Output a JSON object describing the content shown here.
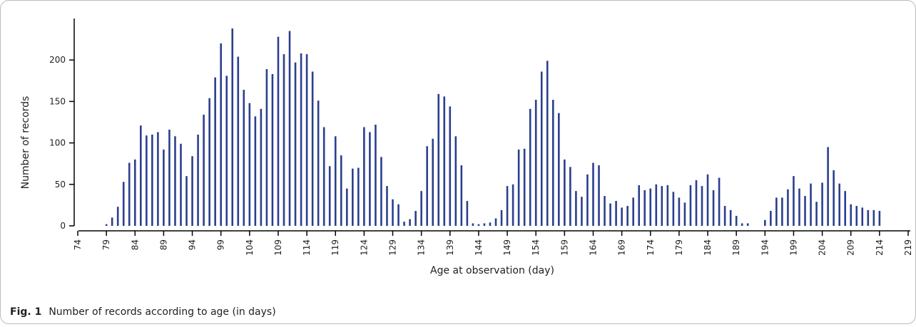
{
  "chart_data": {
    "type": "bar",
    "xlabel": "Age at observation (day)",
    "ylabel": "Number of records",
    "caption_label": "Fig. 1",
    "caption_text": "Number of records according to age (in days)",
    "color": "#2b3f8f",
    "x": [
      79,
      80,
      81,
      82,
      83,
      84,
      85,
      86,
      87,
      88,
      89,
      90,
      91,
      92,
      93,
      94,
      95,
      96,
      97,
      98,
      99,
      100,
      101,
      102,
      103,
      104,
      105,
      106,
      107,
      108,
      109,
      110,
      111,
      112,
      113,
      114,
      115,
      116,
      117,
      118,
      119,
      120,
      121,
      122,
      123,
      124,
      125,
      126,
      127,
      128,
      129,
      130,
      131,
      132,
      133,
      134,
      135,
      136,
      137,
      138,
      139,
      140,
      141,
      142,
      143,
      144,
      145,
      146,
      147,
      148,
      149,
      150,
      151,
      152,
      153,
      154,
      155,
      156,
      157,
      158,
      159,
      160,
      161,
      162,
      163,
      164,
      165,
      166,
      167,
      168,
      169,
      170,
      171,
      172,
      173,
      174,
      175,
      176,
      177,
      178,
      179,
      180,
      181,
      182,
      183,
      184,
      185,
      186,
      187,
      188,
      189,
      190,
      191,
      192,
      193,
      194,
      195,
      196,
      197,
      198,
      199,
      200,
      201,
      202,
      203,
      204,
      205,
      206,
      207,
      208,
      209,
      210,
      211,
      212,
      213,
      214
    ],
    "values": [
      2,
      10,
      23,
      53,
      76,
      80,
      121,
      109,
      110,
      113,
      92,
      116,
      108,
      99,
      60,
      84,
      110,
      134,
      154,
      179,
      220,
      181,
      238,
      204,
      164,
      148,
      132,
      141,
      189,
      183,
      228,
      207,
      235,
      197,
      208,
      207,
      186,
      151,
      119,
      72,
      108,
      85,
      45,
      69,
      70,
      119,
      113,
      122,
      83,
      48,
      32,
      26,
      5,
      8,
      18,
      42,
      96,
      105,
      159,
      156,
      144,
      108,
      73,
      30,
      3,
      2,
      3,
      4,
      9,
      19,
      48,
      50,
      92,
      93,
      141,
      152,
      186,
      199,
      152,
      136,
      80,
      71,
      42,
      35,
      62,
      76,
      73,
      36,
      27,
      30,
      22,
      24,
      34,
      49,
      43,
      45,
      50,
      48,
      49,
      41,
      34,
      28,
      49,
      55,
      48,
      62,
      43,
      58,
      24,
      19,
      12,
      3,
      3,
      0,
      0,
      7,
      18,
      34,
      34,
      44,
      60,
      45,
      36,
      51,
      29,
      52,
      95,
      67,
      51,
      42,
      26,
      24,
      22,
      19,
      19,
      18
    ],
    "xlim": [
      74,
      219
    ],
    "xticks": [
      74,
      79,
      84,
      89,
      94,
      99,
      104,
      109,
      114,
      119,
      124,
      129,
      134,
      139,
      144,
      149,
      154,
      159,
      164,
      169,
      174,
      179,
      184,
      189,
      194,
      199,
      204,
      209,
      214,
      219
    ],
    "ylim": [
      0,
      250
    ],
    "yticks": [
      0,
      50,
      100,
      150,
      200
    ]
  }
}
